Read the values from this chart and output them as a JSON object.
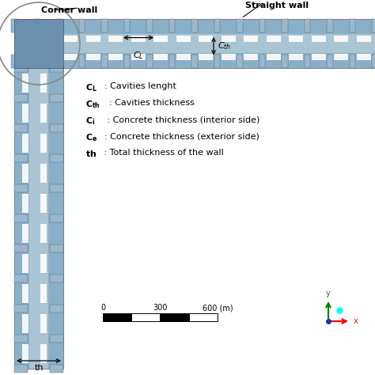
{
  "bg_color": "#ffffff",
  "wall_outer_color": "#8aafc8",
  "wall_inner_color": "#b8cdd8",
  "wall_cavity_color": "#6888a8",
  "notch_color": "#9ab8cc",
  "notch_edge": "#556677",
  "corner_wall_label": "Corner wall",
  "straight_wall_label": "Straight wall",
  "th_label": "th",
  "figsize": [
    4.74,
    4.74
  ],
  "dpi": 100
}
